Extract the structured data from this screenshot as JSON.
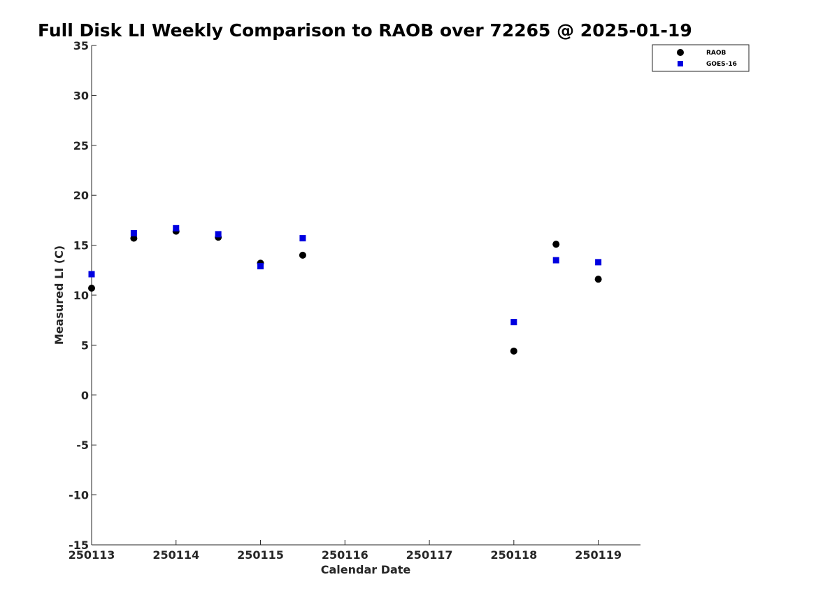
{
  "chart_data": {
    "type": "scatter",
    "title": "Full Disk LI Weekly Comparison to RAOB over 72265 @ 2025-01-19",
    "xlabel": "Calendar Date",
    "ylabel": "Measured LI (C)",
    "x_ticks": [
      "250113",
      "250114",
      "250115",
      "250116",
      "250117",
      "250118",
      "250119"
    ],
    "y_ticks": [
      35,
      30,
      25,
      20,
      15,
      10,
      5,
      0,
      -5,
      -10,
      -15
    ],
    "xlim": [
      "250113",
      "250119 12:00"
    ],
    "ylim": [
      -15,
      35
    ],
    "grid": false,
    "legend_position": "top-right",
    "series": [
      {
        "name": "RAOB",
        "marker": "circle",
        "color": "#000000",
        "points": [
          {
            "x": "250113 00:00",
            "y": 10.7
          },
          {
            "x": "250113 12:00",
            "y": 15.7
          },
          {
            "x": "250114 00:00",
            "y": 16.4
          },
          {
            "x": "250114 12:00",
            "y": 15.8
          },
          {
            "x": "250115 00:00",
            "y": 13.2
          },
          {
            "x": "250115 12:00",
            "y": 14.0
          },
          {
            "x": "250118 00:00",
            "y": 4.4
          },
          {
            "x": "250118 12:00",
            "y": 15.1
          },
          {
            "x": "250119 00:00",
            "y": 11.6
          }
        ]
      },
      {
        "name": "GOES-16",
        "marker": "square",
        "color": "#0000e0",
        "points": [
          {
            "x": "250113 00:00",
            "y": 12.1
          },
          {
            "x": "250113 12:00",
            "y": 16.2
          },
          {
            "x": "250114 00:00",
            "y": 16.7
          },
          {
            "x": "250114 12:00",
            "y": 16.1
          },
          {
            "x": "250115 00:00",
            "y": 12.9
          },
          {
            "x": "250115 12:00",
            "y": 15.7
          },
          {
            "x": "250118 00:00",
            "y": 7.3
          },
          {
            "x": "250118 12:00",
            "y": 13.5
          },
          {
            "x": "250119 00:00",
            "y": 13.3
          }
        ]
      }
    ]
  }
}
